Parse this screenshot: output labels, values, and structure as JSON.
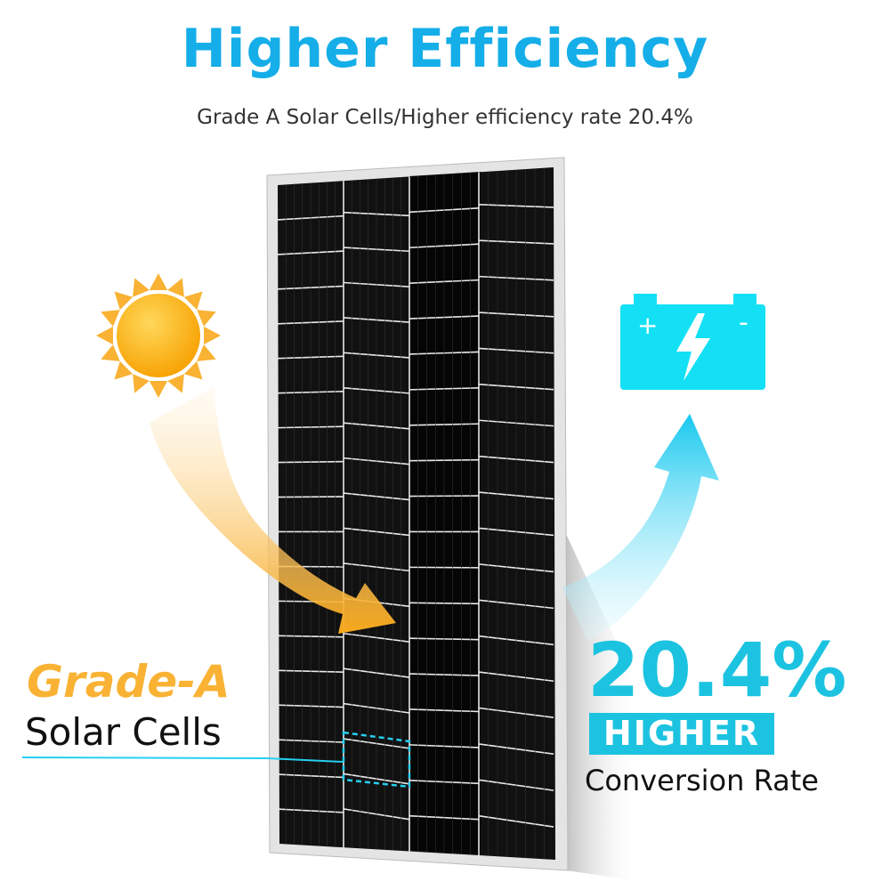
{
  "header": {
    "title": "Higher Efficiency",
    "subtitle": "Grade A Solar Cells/Higher efficiency rate 20.4%"
  },
  "left_callout": {
    "highlight": "Grade-A",
    "label": "Solar Cells"
  },
  "right_callout": {
    "value": "20.4%",
    "badge": "HIGHER",
    "label": "Conversion Rate"
  },
  "battery": {
    "plus": "+",
    "minus": "-"
  },
  "icons": [
    "sun-icon",
    "battery-icon",
    "lightning-bolt-icon",
    "curved-arrow-orange",
    "curved-arrow-blue"
  ],
  "colors": {
    "title": "#15aee8",
    "accent_cyan": "#1cc3e0",
    "accent_orange": "#f9b233",
    "battery": "#14e0f5"
  }
}
